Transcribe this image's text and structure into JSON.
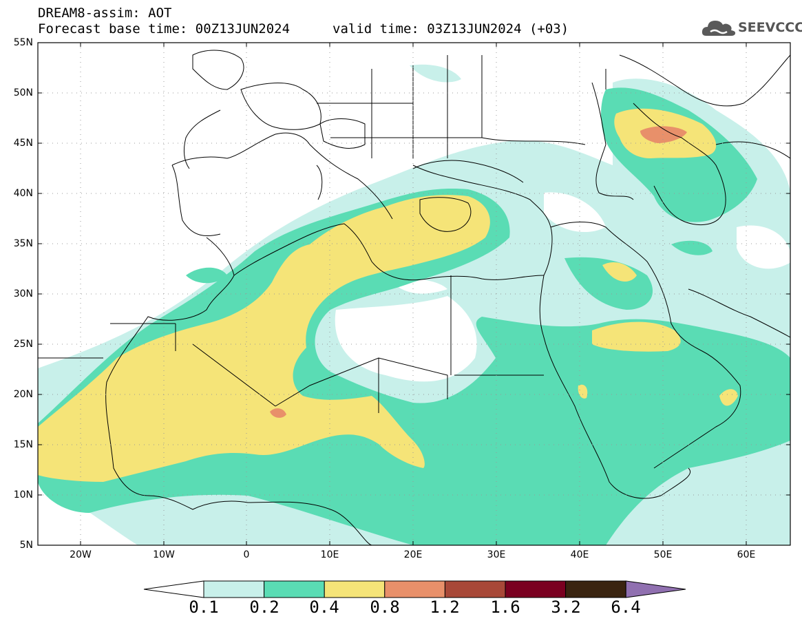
{
  "title": {
    "line1": "DREAM8-assim: AOT",
    "line2": "Forecast base time: 00Z13JUN2024",
    "line3": "valid time: 03Z13JUN2024 (+03)"
  },
  "logo": {
    "text": "SEEVCCC",
    "icon": "cloud-icon"
  },
  "lat_labels": [
    "55N",
    "50N",
    "45N",
    "40N",
    "35N",
    "30N",
    "25N",
    "20N",
    "15N",
    "10N",
    "5N"
  ],
  "lon_labels": [
    "20W",
    "10W",
    "0",
    "10E",
    "20E",
    "30E",
    "40E",
    "50E",
    "60E"
  ],
  "colorbar": {
    "labels": [
      "0.1",
      "0.2",
      "0.4",
      "0.8",
      "1.2",
      "1.6",
      "3.2",
      "6.4"
    ],
    "colors": [
      "#c8f0ea",
      "#5adcb4",
      "#f5e478",
      "#e8906a",
      "#a84838",
      "#7a0020",
      "#3a2410",
      "#9070b0"
    ]
  },
  "legend_colors": {
    "lt": "#c8f0ea",
    "md": "#5adcb4",
    "yl": "#f5e478",
    "or": "#e8906a"
  }
}
